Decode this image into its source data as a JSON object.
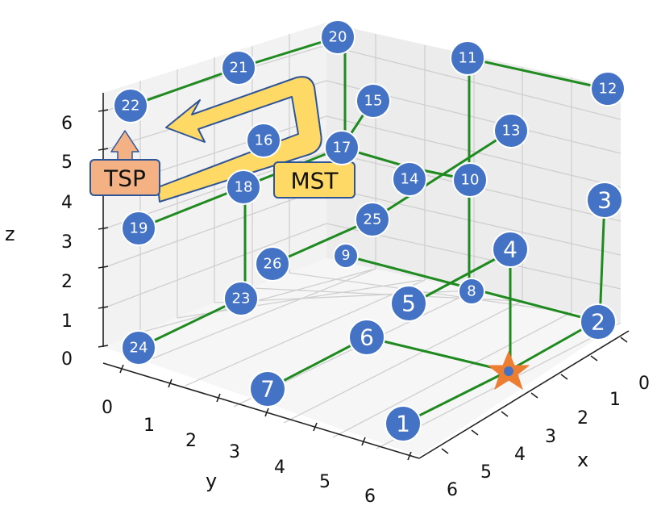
{
  "axes": {
    "x_label": "x",
    "y_label": "y",
    "z_label": "z",
    "x_ticks": [
      "0",
      "1",
      "2",
      "3",
      "4",
      "5",
      "6"
    ],
    "y_ticks": [
      "0",
      "1",
      "2",
      "3",
      "4",
      "5",
      "6"
    ],
    "z_ticks": [
      "0",
      "1",
      "2",
      "3",
      "4",
      "5",
      "6"
    ]
  },
  "nodes": [
    {
      "id": "1"
    },
    {
      "id": "2"
    },
    {
      "id": "3"
    },
    {
      "id": "4"
    },
    {
      "id": "5"
    },
    {
      "id": "6"
    },
    {
      "id": "7"
    },
    {
      "id": "8"
    },
    {
      "id": "9"
    },
    {
      "id": "10"
    },
    {
      "id": "11"
    },
    {
      "id": "12"
    },
    {
      "id": "13"
    },
    {
      "id": "14"
    },
    {
      "id": "15"
    },
    {
      "id": "16"
    },
    {
      "id": "17"
    },
    {
      "id": "18"
    },
    {
      "id": "19"
    },
    {
      "id": "20"
    },
    {
      "id": "21"
    },
    {
      "id": "22"
    },
    {
      "id": "23"
    },
    {
      "id": "24"
    },
    {
      "id": "25"
    },
    {
      "id": "26"
    }
  ],
  "callouts": {
    "tsp": "TSP",
    "mst": "MST"
  },
  "colors": {
    "node_fill": "#4472c4",
    "edge": "#1f8a1f",
    "tsp_box": "#f4b183",
    "mst_box": "#ffd966",
    "mst_arrow": "#ffd966",
    "tsp_arrow": "#f4b183",
    "start_marker": "#ed7d31"
  },
  "start_marker_icon": "star-icon"
}
